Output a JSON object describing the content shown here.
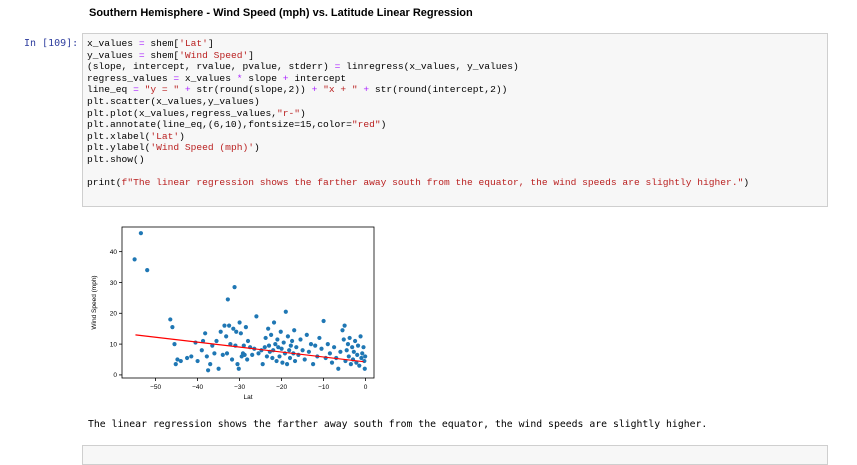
{
  "heading": "Southern Hemisphere - Wind Speed (mph) vs. Latitude Linear Regression",
  "cell": {
    "prompt": "In [109]:",
    "code_lines": [
      "x_values = shem['Lat']",
      "y_values = shem['Wind Speed']",
      "(slope, intercept, rvalue, pvalue, stderr) = linregress(x_values, y_values)",
      "regress_values = x_values * slope + intercept",
      "line_eq = \"y = \" + str(round(slope,2)) + \"x + \" + str(round(intercept,2))",
      "plt.scatter(x_values,y_values)",
      "plt.plot(x_values,regress_values,\"r-\")",
      "plt.annotate(line_eq,(6,10),fontsize=15,color=\"red\")",
      "plt.xlabel('Lat')",
      "plt.ylabel('Wind Speed (mph)')",
      "plt.show()",
      "",
      "print(f\"The linear regression shows the farther away south from the equator, the wind speeds are slightly higher.\")"
    ]
  },
  "output_text": "The linear regression shows the farther away south from the equator, the wind speeds are slightly higher.",
  "chart_data": {
    "type": "scatter",
    "xlabel": "Lat",
    "ylabel": "Wind Speed (mph)",
    "xlim": [
      -58,
      2
    ],
    "ylim": [
      -1,
      48
    ],
    "xticks": [
      -50,
      -40,
      -30,
      -20,
      -10,
      0
    ],
    "yticks": [
      0,
      10,
      20,
      30,
      40
    ],
    "point_color": "#1f77b4",
    "line_color": "#ff0000",
    "regression": {
      "x": [
        -54.8,
        -0.5
      ],
      "y": [
        13.0,
        4.3
      ]
    },
    "points": [
      [
        -55,
        37.5
      ],
      [
        -53.5,
        46
      ],
      [
        -52,
        34
      ],
      [
        -46.5,
        18
      ],
      [
        -46,
        15.5
      ],
      [
        -45.5,
        10
      ],
      [
        -45.2,
        3.5
      ],
      [
        -44.8,
        5
      ],
      [
        -44,
        4.5
      ],
      [
        -42.5,
        5.5
      ],
      [
        -41.5,
        6
      ],
      [
        -40.5,
        10.5
      ],
      [
        -40,
        4.5
      ],
      [
        -39,
        8
      ],
      [
        -38.7,
        11
      ],
      [
        -38.2,
        13.5
      ],
      [
        -37.8,
        6
      ],
      [
        -37.5,
        1.5
      ],
      [
        -37,
        3.5
      ],
      [
        -36.5,
        9.5
      ],
      [
        -36,
        7
      ],
      [
        -35.5,
        11
      ],
      [
        -35,
        2
      ],
      [
        -34.5,
        14
      ],
      [
        -34,
        6.5
      ],
      [
        -33.6,
        16
      ],
      [
        -33.2,
        12.5
      ],
      [
        -33,
        7
      ],
      [
        -32.8,
        24.5
      ],
      [
        -32.5,
        16
      ],
      [
        -32.2,
        10
      ],
      [
        -31.8,
        5
      ],
      [
        -31.5,
        15
      ],
      [
        -31.2,
        28.5
      ],
      [
        -31,
        9.5
      ],
      [
        -30.8,
        14
      ],
      [
        -30.5,
        3.5
      ],
      [
        -30.2,
        2
      ],
      [
        -30,
        17
      ],
      [
        -29.7,
        13.5
      ],
      [
        -29.5,
        6
      ],
      [
        -29.2,
        7
      ],
      [
        -29,
        9.5
      ],
      [
        -28.8,
        6.5
      ],
      [
        -28.5,
        15.5
      ],
      [
        -28.2,
        5
      ],
      [
        -28,
        11
      ],
      [
        -27.5,
        9
      ],
      [
        -27,
        6.5
      ],
      [
        -26.5,
        8.5
      ],
      [
        -26,
        19
      ],
      [
        -25.5,
        7
      ],
      [
        -24.8,
        8
      ],
      [
        -24.5,
        3.5
      ],
      [
        -24,
        9
      ],
      [
        -23.8,
        12
      ],
      [
        -23.5,
        6
      ],
      [
        -23.2,
        15
      ],
      [
        -23,
        9.5
      ],
      [
        -22.8,
        7.5
      ],
      [
        -22.5,
        13
      ],
      [
        -22.2,
        5.5
      ],
      [
        -22,
        8
      ],
      [
        -21.8,
        17
      ],
      [
        -21.5,
        10
      ],
      [
        -21.2,
        4.5
      ],
      [
        -21,
        11.5
      ],
      [
        -20.8,
        9
      ],
      [
        -20.5,
        6
      ],
      [
        -20.2,
        14
      ],
      [
        -20,
        8.5
      ],
      [
        -19.8,
        4
      ],
      [
        -19.5,
        10.5
      ],
      [
        -19.2,
        7
      ],
      [
        -19,
        20.5
      ],
      [
        -18.7,
        3.5
      ],
      [
        -18.5,
        12.5
      ],
      [
        -18.2,
        8
      ],
      [
        -18,
        5.5
      ],
      [
        -17.8,
        9.5
      ],
      [
        -17.5,
        11
      ],
      [
        -17.2,
        7
      ],
      [
        -17,
        14.5
      ],
      [
        -16.8,
        4.5
      ],
      [
        -16.5,
        9
      ],
      [
        -16,
        6.5
      ],
      [
        -15.5,
        11.5
      ],
      [
        -15,
        8
      ],
      [
        -14.5,
        5
      ],
      [
        -14,
        13
      ],
      [
        -13.5,
        7.5
      ],
      [
        -13,
        10
      ],
      [
        -12.5,
        3.5
      ],
      [
        -12,
        9.5
      ],
      [
        -11.5,
        6
      ],
      [
        -11,
        12
      ],
      [
        -10.5,
        8.5
      ],
      [
        -10,
        17.5
      ],
      [
        -9.5,
        5.5
      ],
      [
        -9,
        10
      ],
      [
        -8.5,
        7
      ],
      [
        -8,
        4
      ],
      [
        -7.5,
        9
      ],
      [
        -7,
        5.5
      ],
      [
        -6.5,
        2
      ],
      [
        -6,
        7.5
      ],
      [
        -5.5,
        14.5
      ],
      [
        -5.2,
        11.5
      ],
      [
        -5,
        16
      ],
      [
        -4.8,
        4.5
      ],
      [
        -4.5,
        8
      ],
      [
        -4.2,
        10
      ],
      [
        -4,
        6
      ],
      [
        -3.8,
        12
      ],
      [
        -3.5,
        3.5
      ],
      [
        -3.2,
        9
      ],
      [
        -3,
        5
      ],
      [
        -2.8,
        7.5
      ],
      [
        -2.5,
        11
      ],
      [
        -2.2,
        4
      ],
      [
        -2,
        6.5
      ],
      [
        -1.8,
        9.5
      ],
      [
        -1.5,
        3
      ],
      [
        -1.2,
        12.5
      ],
      [
        -1,
        5.5
      ],
      [
        -0.8,
        7
      ],
      [
        -0.5,
        9
      ],
      [
        -0.3,
        4.5
      ],
      [
        -0.2,
        2
      ],
      [
        -0.1,
        6
      ]
    ]
  }
}
